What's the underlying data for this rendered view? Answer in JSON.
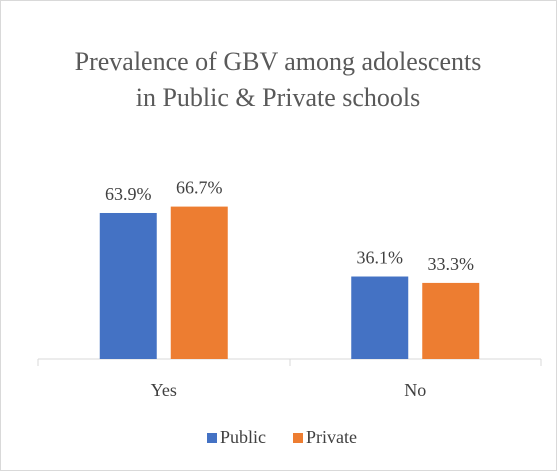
{
  "chart_data": {
    "type": "bar",
    "title": "Prevalence of GBV among adolescents in Public & Private schools",
    "categories": [
      "Yes",
      "No"
    ],
    "series": [
      {
        "name": "Public",
        "color": "#4472c4",
        "values": [
          63.9,
          36.1
        ],
        "value_labels": [
          "63.9%",
          "36.1%"
        ]
      },
      {
        "name": "Private",
        "color": "#ed7d31",
        "values": [
          66.7,
          33.3
        ],
        "value_labels": [
          "66.7%",
          "33.3%"
        ]
      }
    ],
    "legend": "bottom"
  }
}
